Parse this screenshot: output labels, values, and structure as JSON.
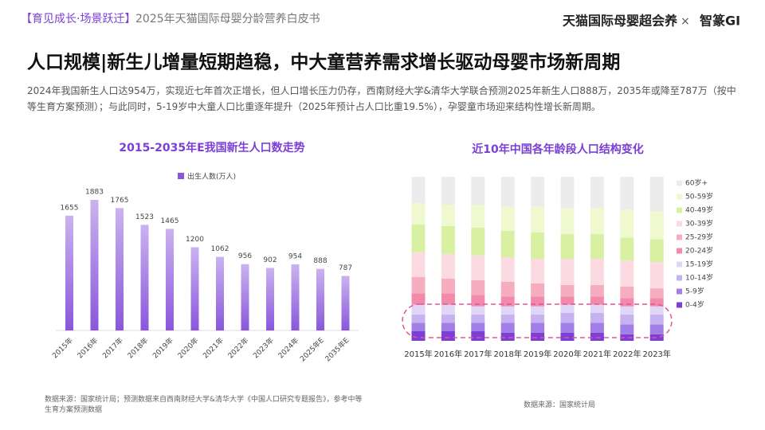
{
  "header": {
    "tag": "【育见成长·场景跃迁】",
    "title": "2025年天猫国际母婴分龄营养白皮书"
  },
  "logo": {
    "brand": "天猫国际母婴超会养",
    "cross": "×",
    "partner": "智篆GI"
  },
  "title": "人口规模|新生儿增量短期趋稳，中大童营养需求增长驱动母婴市场新周期",
  "description": "2024年我国新生人口达954万，实现近七年首次正增长，但人口增长压力仍存，西南财经大学&清华大学联合预测2025年新生人口888万，2035年或降至787万（按中等生育方案预测）；与此同时，5-19岁中大童人口比重逐年提升（2025年预计占人口比重19.5%），孕婴童市场迎来结构性增长新周期。",
  "chart_data": [
    {
      "type": "bar",
      "title": "2015-2035年E我国新生人口数走势",
      "categories": [
        "2015年",
        "2016年",
        "2017年",
        "2018年",
        "2019年",
        "2020年",
        "2021年",
        "2022年",
        "2023年",
        "2024年",
        "2025年E",
        "2035年E"
      ],
      "series": [
        {
          "name": "出生人数(万人)",
          "color": "#8a56dc",
          "values": [
            1655,
            1883,
            1765,
            1523,
            1465,
            1200,
            1062,
            956,
            902,
            954,
            888,
            787
          ]
        }
      ],
      "source": "数据来源：国家统计局；预测数据来自西南财经大学&清华大学《中国人口研究专题报告》，参考中等生育方案预测数据"
    },
    {
      "type": "stacked-bar",
      "title": "近10年中国各年龄段人口结构变化",
      "categories": [
        "2015年",
        "2016年",
        "2017年",
        "2018年",
        "2019年",
        "2020年",
        "2021年",
        "2022年",
        "2023年"
      ],
      "series": [
        {
          "name": "0-4岁",
          "color": "#7b3fd6",
          "values": [
            6,
            6,
            6,
            5,
            5,
            5,
            5,
            4,
            4
          ]
        },
        {
          "name": "5-9岁",
          "color": "#a27fe6",
          "values": [
            5,
            5,
            5,
            6,
            6,
            6,
            6,
            6,
            6
          ]
        },
        {
          "name": "10-14岁",
          "color": "#c6b2f0",
          "values": [
            5,
            5,
            5,
            5,
            5,
            6,
            6,
            6,
            6
          ]
        },
        {
          "name": "15-19岁",
          "color": "#e0d6f6",
          "values": [
            6,
            6,
            5,
            5,
            5,
            5,
            5,
            5,
            5
          ]
        },
        {
          "name": "20-24岁",
          "color": "#f28bab",
          "values": [
            7,
            7,
            7,
            6,
            6,
            5,
            5,
            5,
            5
          ]
        },
        {
          "name": "25-29岁",
          "color": "#f7adc0",
          "values": [
            10,
            9,
            9,
            9,
            8,
            7,
            7,
            7,
            6
          ]
        },
        {
          "name": "30-39岁",
          "color": "#fcdae1",
          "values": [
            15,
            15,
            15,
            15,
            15,
            16,
            16,
            16,
            16
          ]
        },
        {
          "name": "40-49岁",
          "color": "#d8f0a2",
          "values": [
            17,
            17,
            17,
            16,
            16,
            15,
            15,
            14,
            14
          ]
        },
        {
          "name": "50-59岁",
          "color": "#eff8cf",
          "values": [
            13,
            13,
            14,
            15,
            16,
            16,
            16,
            17,
            17
          ]
        },
        {
          "name": "60岁+",
          "color": "#ececec",
          "values": [
            16,
            17,
            17,
            18,
            18,
            19,
            19,
            20,
            21
          ]
        }
      ],
      "source": "数据来源：国家统计局"
    }
  ]
}
